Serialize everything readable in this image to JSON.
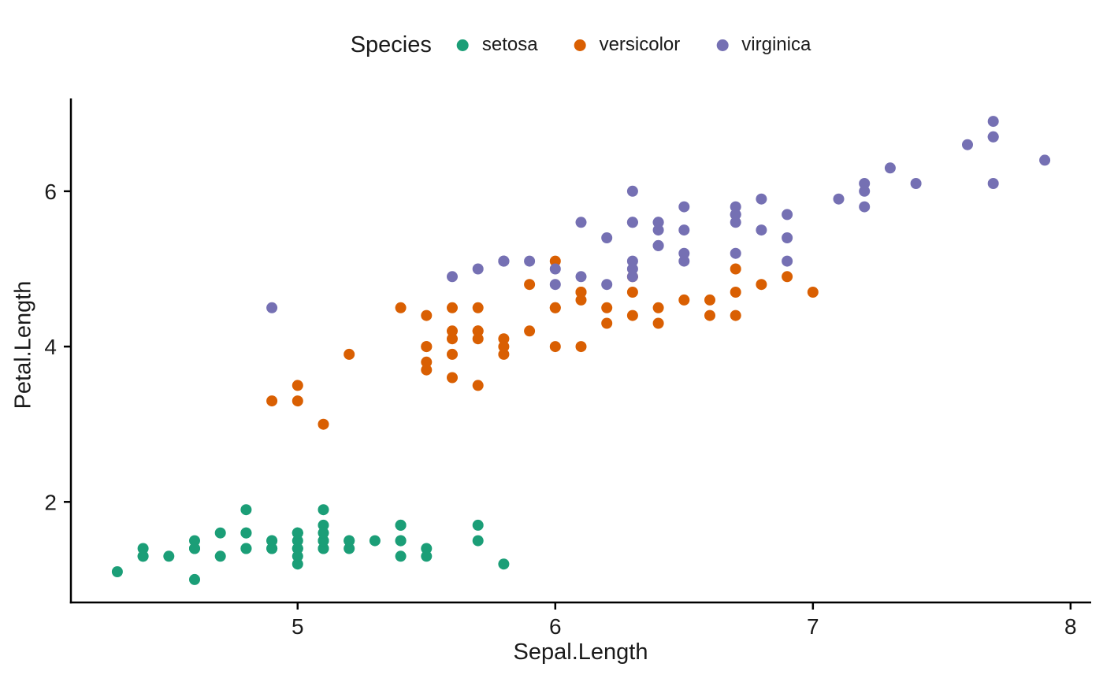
{
  "chart_data": {
    "type": "scatter",
    "title": "",
    "xlabel": "Sepal.Length",
    "ylabel": "Petal.Length",
    "legend": {
      "title": "Species",
      "position": "top"
    },
    "xlim": [
      4.12,
      8.08
    ],
    "ylim": [
      0.705,
      7.195
    ],
    "xticks": [
      5,
      6,
      7,
      8
    ],
    "yticks": [
      2,
      4,
      6
    ],
    "grid": false,
    "point_radius": 7,
    "axis_color": "#000000",
    "text_color": "#1a1a1a",
    "series": [
      {
        "name": "setosa",
        "color": "#1B9E77",
        "points": [
          [
            5.1,
            1.4
          ],
          [
            4.9,
            1.4
          ],
          [
            4.7,
            1.3
          ],
          [
            4.6,
            1.5
          ],
          [
            5.0,
            1.4
          ],
          [
            5.4,
            1.7
          ],
          [
            4.6,
            1.4
          ],
          [
            5.0,
            1.5
          ],
          [
            4.4,
            1.4
          ],
          [
            4.9,
            1.5
          ],
          [
            5.4,
            1.5
          ],
          [
            4.8,
            1.6
          ],
          [
            4.8,
            1.4
          ],
          [
            4.3,
            1.1
          ],
          [
            5.8,
            1.2
          ],
          [
            5.7,
            1.5
          ],
          [
            5.4,
            1.3
          ],
          [
            5.1,
            1.4
          ],
          [
            5.7,
            1.7
          ],
          [
            5.1,
            1.5
          ],
          [
            5.4,
            1.7
          ],
          [
            5.1,
            1.5
          ],
          [
            4.6,
            1.0
          ],
          [
            5.1,
            1.7
          ],
          [
            4.8,
            1.9
          ],
          [
            5.0,
            1.6
          ],
          [
            5.0,
            1.6
          ],
          [
            5.2,
            1.5
          ],
          [
            5.2,
            1.4
          ],
          [
            4.7,
            1.6
          ],
          [
            4.8,
            1.6
          ],
          [
            5.4,
            1.5
          ],
          [
            5.2,
            1.5
          ],
          [
            5.5,
            1.4
          ],
          [
            4.9,
            1.5
          ],
          [
            5.0,
            1.2
          ],
          [
            5.5,
            1.3
          ],
          [
            4.9,
            1.4
          ],
          [
            4.4,
            1.3
          ],
          [
            5.1,
            1.5
          ],
          [
            5.0,
            1.3
          ],
          [
            4.5,
            1.3
          ],
          [
            4.4,
            1.3
          ],
          [
            5.0,
            1.6
          ],
          [
            5.1,
            1.9
          ],
          [
            4.8,
            1.4
          ],
          [
            5.1,
            1.6
          ],
          [
            4.6,
            1.4
          ],
          [
            5.3,
            1.5
          ],
          [
            5.0,
            1.4
          ]
        ]
      },
      {
        "name": "versicolor",
        "color": "#D95F02",
        "points": [
          [
            7.0,
            4.7
          ],
          [
            6.4,
            4.5
          ],
          [
            6.9,
            4.9
          ],
          [
            5.5,
            4.0
          ],
          [
            6.5,
            4.6
          ],
          [
            5.7,
            4.5
          ],
          [
            6.3,
            4.7
          ],
          [
            4.9,
            3.3
          ],
          [
            6.6,
            4.6
          ],
          [
            5.2,
            3.9
          ],
          [
            5.0,
            3.5
          ],
          [
            5.9,
            4.2
          ],
          [
            6.0,
            4.0
          ],
          [
            6.1,
            4.7
          ],
          [
            5.6,
            3.6
          ],
          [
            6.7,
            4.4
          ],
          [
            5.6,
            4.5
          ],
          [
            5.8,
            4.1
          ],
          [
            6.2,
            4.5
          ],
          [
            5.6,
            3.9
          ],
          [
            5.9,
            4.8
          ],
          [
            6.1,
            4.0
          ],
          [
            6.3,
            4.9
          ],
          [
            6.1,
            4.7
          ],
          [
            6.4,
            4.3
          ],
          [
            6.6,
            4.4
          ],
          [
            6.8,
            4.8
          ],
          [
            6.7,
            5.0
          ],
          [
            6.0,
            4.5
          ],
          [
            5.7,
            3.5
          ],
          [
            5.5,
            3.8
          ],
          [
            5.5,
            3.7
          ],
          [
            5.8,
            3.9
          ],
          [
            6.0,
            5.1
          ],
          [
            5.4,
            4.5
          ],
          [
            6.0,
            4.5
          ],
          [
            6.7,
            4.7
          ],
          [
            6.3,
            4.4
          ],
          [
            5.6,
            4.1
          ],
          [
            5.5,
            4.0
          ],
          [
            5.5,
            4.4
          ],
          [
            6.1,
            4.6
          ],
          [
            5.8,
            4.0
          ],
          [
            5.0,
            3.3
          ],
          [
            5.6,
            4.2
          ],
          [
            5.7,
            4.2
          ],
          [
            5.7,
            4.2
          ],
          [
            6.2,
            4.3
          ],
          [
            5.1,
            3.0
          ],
          [
            5.7,
            4.1
          ]
        ]
      },
      {
        "name": "virginica",
        "color": "#7570B3",
        "points": [
          [
            6.3,
            6.0
          ],
          [
            5.8,
            5.1
          ],
          [
            7.1,
            5.9
          ],
          [
            6.3,
            5.6
          ],
          [
            6.5,
            5.8
          ],
          [
            7.6,
            6.6
          ],
          [
            4.9,
            4.5
          ],
          [
            7.3,
            6.3
          ],
          [
            6.7,
            5.8
          ],
          [
            7.2,
            6.1
          ],
          [
            6.5,
            5.1
          ],
          [
            6.4,
            5.3
          ],
          [
            6.8,
            5.5
          ],
          [
            5.7,
            5.0
          ],
          [
            5.8,
            5.1
          ],
          [
            6.4,
            5.3
          ],
          [
            6.5,
            5.5
          ],
          [
            7.7,
            6.7
          ],
          [
            7.7,
            6.9
          ],
          [
            6.0,
            5.0
          ],
          [
            6.9,
            5.7
          ],
          [
            5.6,
            4.9
          ],
          [
            7.7,
            6.7
          ],
          [
            6.3,
            4.9
          ],
          [
            6.7,
            5.7
          ],
          [
            7.2,
            6.0
          ],
          [
            6.2,
            4.8
          ],
          [
            6.1,
            4.9
          ],
          [
            6.4,
            5.6
          ],
          [
            7.2,
            5.8
          ],
          [
            7.4,
            6.1
          ],
          [
            7.9,
            6.4
          ],
          [
            6.4,
            5.6
          ],
          [
            6.3,
            5.1
          ],
          [
            6.1,
            5.6
          ],
          [
            7.7,
            6.1
          ],
          [
            6.3,
            5.6
          ],
          [
            6.4,
            5.5
          ],
          [
            6.0,
            4.8
          ],
          [
            6.9,
            5.4
          ],
          [
            6.7,
            5.6
          ],
          [
            6.9,
            5.1
          ],
          [
            5.8,
            5.1
          ],
          [
            6.8,
            5.9
          ],
          [
            6.7,
            5.7
          ],
          [
            6.7,
            5.2
          ],
          [
            6.3,
            5.0
          ],
          [
            6.5,
            5.2
          ],
          [
            6.2,
            5.4
          ],
          [
            5.9,
            5.1
          ]
        ]
      }
    ]
  }
}
